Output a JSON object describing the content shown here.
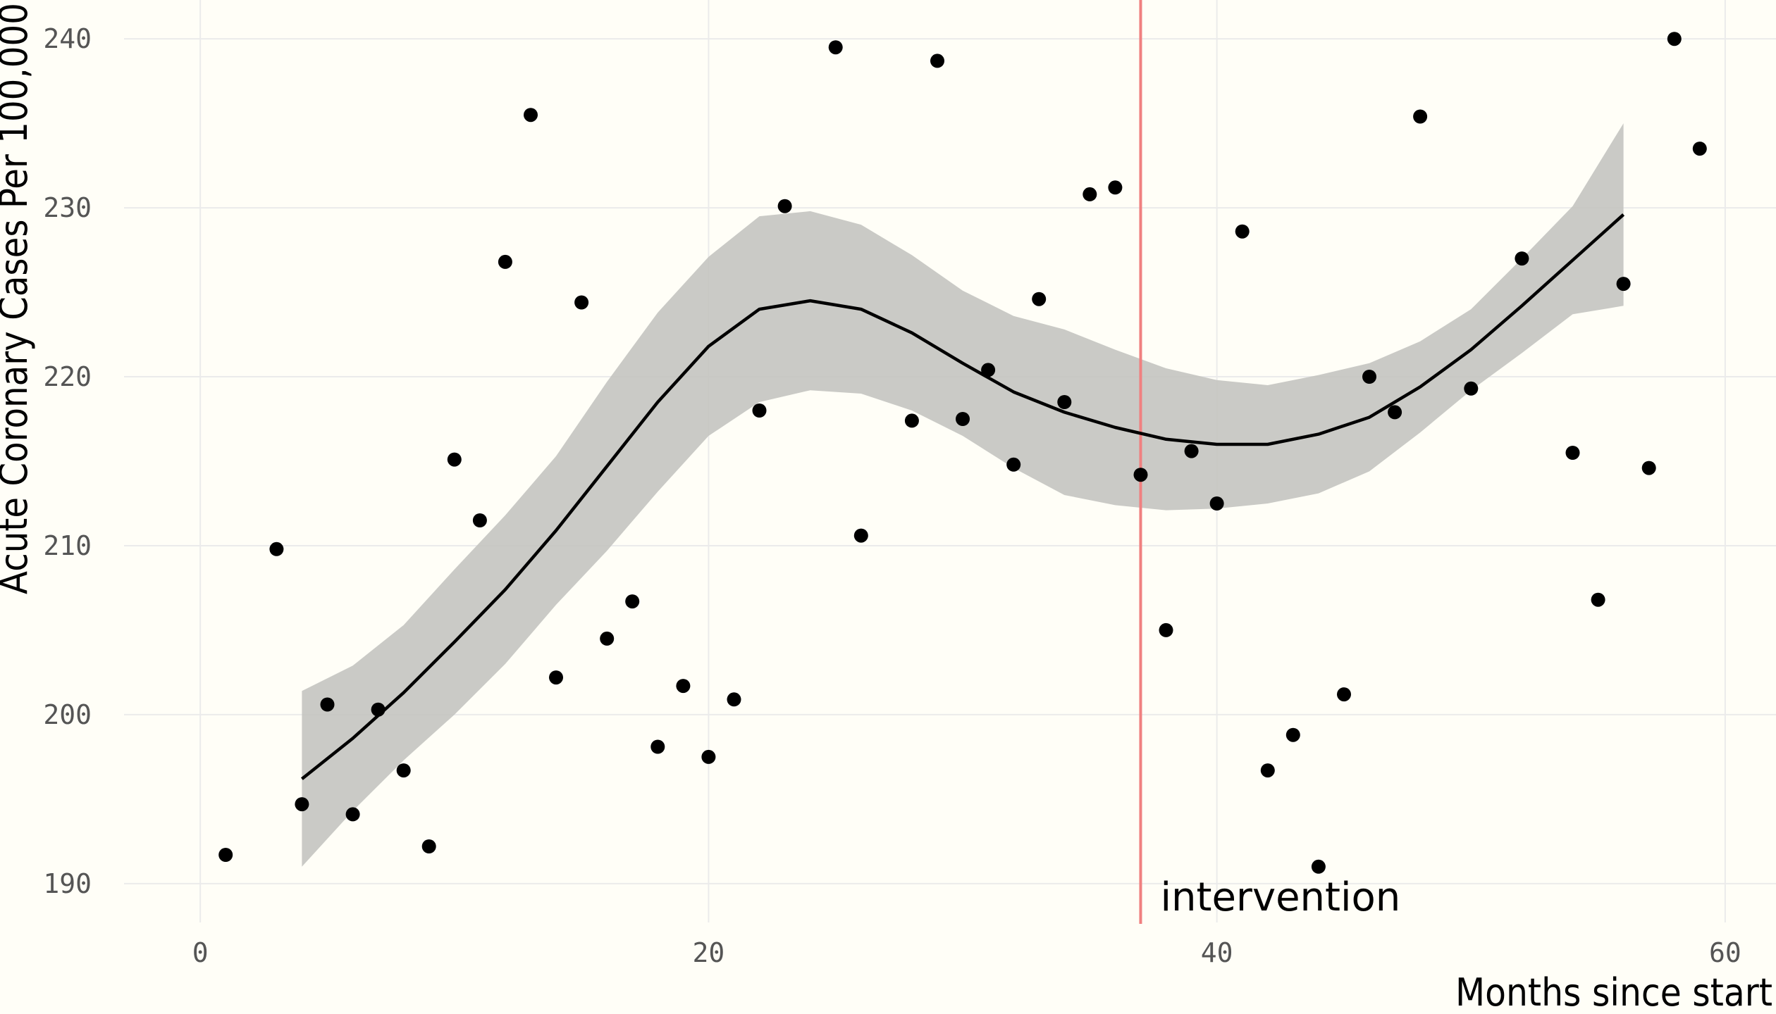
{
  "chart_data": {
    "type": "scatter",
    "title": "",
    "xlabel": "Months since start",
    "ylabel": "Acute Coronary Cases Per 100,000",
    "xlim": [
      -3,
      62
    ],
    "ylim": [
      187.7,
      242.3
    ],
    "x_ticks": [
      0,
      20,
      40,
      60
    ],
    "y_ticks": [
      190,
      200,
      210,
      220,
      230,
      240
    ],
    "x_tick_labels": [
      "0",
      "20",
      "40",
      "60"
    ],
    "y_tick_labels": [
      "190",
      "200",
      "210",
      "220",
      "230",
      "240"
    ],
    "grid": true,
    "legend": "none",
    "points": [
      [
        1,
        191.7
      ],
      [
        3,
        209.8
      ],
      [
        4,
        194.7
      ],
      [
        5,
        200.6
      ],
      [
        6,
        194.1
      ],
      [
        7,
        200.3
      ],
      [
        8,
        196.7
      ],
      [
        9,
        192.2
      ],
      [
        10,
        215.1
      ],
      [
        11,
        211.5
      ],
      [
        12,
        226.8
      ],
      [
        13,
        235.5
      ],
      [
        14,
        202.2
      ],
      [
        15,
        224.4
      ],
      [
        16,
        204.5
      ],
      [
        17,
        206.7
      ],
      [
        18,
        198.1
      ],
      [
        19,
        201.7
      ],
      [
        20,
        197.5
      ],
      [
        21,
        200.9
      ],
      [
        22,
        218.0
      ],
      [
        23,
        230.1
      ],
      [
        25,
        239.5
      ],
      [
        26,
        210.6
      ],
      [
        28,
        217.4
      ],
      [
        29,
        238.7
      ],
      [
        30,
        217.5
      ],
      [
        31,
        220.4
      ],
      [
        32,
        214.8
      ],
      [
        33,
        224.6
      ],
      [
        34,
        218.5
      ],
      [
        35,
        230.8
      ],
      [
        36,
        231.2
      ],
      [
        37,
        214.2
      ],
      [
        38,
        205.0
      ],
      [
        39,
        215.6
      ],
      [
        40,
        212.5
      ],
      [
        41,
        228.6
      ],
      [
        42,
        196.7
      ],
      [
        43,
        198.8
      ],
      [
        44,
        191.0
      ],
      [
        45,
        201.2
      ],
      [
        46,
        220.0
      ],
      [
        47,
        217.9
      ],
      [
        48,
        235.4
      ],
      [
        50,
        219.3
      ],
      [
        52,
        227.0
      ],
      [
        54,
        215.5
      ],
      [
        55,
        206.8
      ],
      [
        56,
        225.5
      ],
      [
        57,
        214.6
      ],
      [
        58,
        240.0
      ],
      [
        59,
        233.5
      ]
    ],
    "smooth_fit": {
      "x": [
        4,
        6,
        8,
        10,
        12,
        14,
        16,
        18,
        20,
        22,
        24,
        26,
        28,
        30,
        32,
        34,
        36,
        38,
        40,
        42,
        44,
        46,
        48,
        50,
        52,
        54,
        56
      ],
      "y": [
        196.2,
        198.6,
        201.3,
        204.3,
        207.4,
        210.9,
        214.7,
        218.5,
        221.8,
        224.0,
        224.5,
        224.0,
        222.6,
        220.8,
        219.1,
        217.9,
        217.0,
        216.3,
        216.0,
        216.0,
        216.6,
        217.6,
        219.4,
        221.6,
        224.2,
        226.9,
        229.6
      ],
      "lower": [
        191.0,
        194.3,
        197.3,
        200.0,
        203.0,
        206.5,
        209.7,
        213.2,
        216.5,
        218.5,
        219.2,
        219.0,
        218.0,
        216.5,
        214.6,
        213.0,
        212.4,
        212.1,
        212.2,
        212.5,
        213.1,
        214.4,
        216.7,
        219.2,
        221.4,
        223.7,
        224.2
      ],
      "upper": [
        201.4,
        202.9,
        205.3,
        208.6,
        211.8,
        215.3,
        219.7,
        223.8,
        227.1,
        229.5,
        229.8,
        229.0,
        227.2,
        225.1,
        223.6,
        222.8,
        221.6,
        220.5,
        219.8,
        219.5,
        220.1,
        220.8,
        222.1,
        224.0,
        227.0,
        230.1,
        235.0
      ]
    },
    "vline": {
      "x": 37,
      "label": "intervention",
      "color": "#f08080"
    },
    "colors": {
      "background": "#fffef7",
      "grid": "#ebebeb",
      "points": "#000000",
      "band": "#c4c4c0",
      "line": "#000000",
      "vline": "#f08080"
    }
  }
}
